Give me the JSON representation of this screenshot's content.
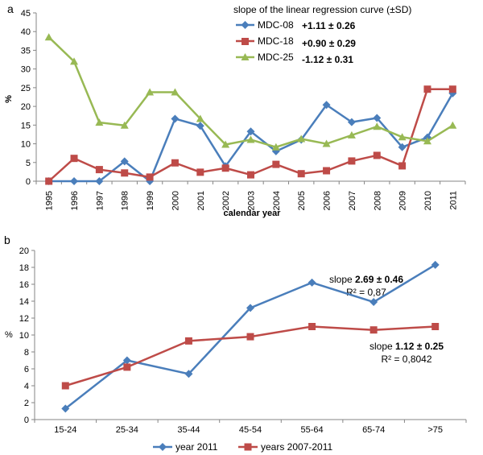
{
  "chart_data": [
    {
      "type": "line",
      "panel_label": "a",
      "title": "slope of the linear regression curve (±SD)",
      "xlabel": "calendar year",
      "ylabel": "%",
      "ylim": [
        0,
        45
      ],
      "yticks": [
        0,
        5,
        10,
        15,
        20,
        25,
        30,
        35,
        40,
        45
      ],
      "grid": false,
      "legend_position": "top-right",
      "categories": [
        "1995",
        "1996",
        "1997",
        "1998",
        "1999",
        "2000",
        "2001",
        "2002",
        "2003",
        "2004",
        "2005",
        "2006",
        "2007",
        "2008",
        "2009",
        "2010",
        "2011"
      ],
      "series": [
        {
          "name": "MDC-08",
          "color": "#4a7ebb",
          "marker": "diamond",
          "slope": "+1.11 ± 0.26",
          "values": [
            0,
            0,
            0,
            5.3,
            0,
            16.7,
            14.8,
            4.0,
            13.3,
            8.0,
            11.1,
            20.4,
            15.8,
            16.9,
            9.1,
            11.7,
            23.5
          ]
        },
        {
          "name": "MDC-18",
          "color": "#be4b48",
          "marker": "square",
          "slope": "+0.90 ± 0.29",
          "values": [
            0,
            6.1,
            3.1,
            2.2,
            1.1,
            4.9,
            2.4,
            3.5,
            1.7,
            4.5,
            2.0,
            2.8,
            5.4,
            6.9,
            4.1,
            24.6,
            24.6
          ]
        },
        {
          "name": "MDC-25",
          "color": "#98b954",
          "marker": "triangle",
          "slope": "-1.12 ± 0.31",
          "values": [
            38.5,
            32.0,
            15.7,
            14.9,
            23.8,
            23.8,
            16.7,
            9.8,
            11.1,
            9.1,
            11.3,
            10.0,
            12.3,
            14.6,
            11.8,
            10.7,
            14.9
          ]
        }
      ]
    },
    {
      "type": "line",
      "panel_label": "b",
      "ylabel": "%",
      "ylim": [
        0,
        20
      ],
      "yticks": [
        0,
        2,
        4,
        6,
        8,
        10,
        12,
        14,
        16,
        18,
        20
      ],
      "grid": false,
      "legend_position": "bottom",
      "categories": [
        "15-24",
        "25-34",
        "35-44",
        "45-54",
        "55-64",
        "65-74",
        ">75"
      ],
      "series": [
        {
          "name": "year 2011",
          "color": "#4a7ebb",
          "marker": "diamond",
          "values": [
            1.3,
            7.0,
            5.4,
            13.2,
            16.2,
            13.9,
            18.3
          ]
        },
        {
          "name": "years 2007-2011",
          "color": "#be4b48",
          "marker": "square",
          "values": [
            4.0,
            6.2,
            9.3,
            9.8,
            11.0,
            10.6,
            11.0
          ]
        }
      ],
      "annotations": [
        {
          "id": "blue",
          "slope_prefix": "slope ",
          "slope_value": "2.69 ± 0.46",
          "r2": "R² = 0,87"
        },
        {
          "id": "red",
          "slope_prefix": "slope ",
          "slope_value": "1.12 ± 0.25",
          "r2": "R² = 0,8042"
        }
      ]
    }
  ]
}
